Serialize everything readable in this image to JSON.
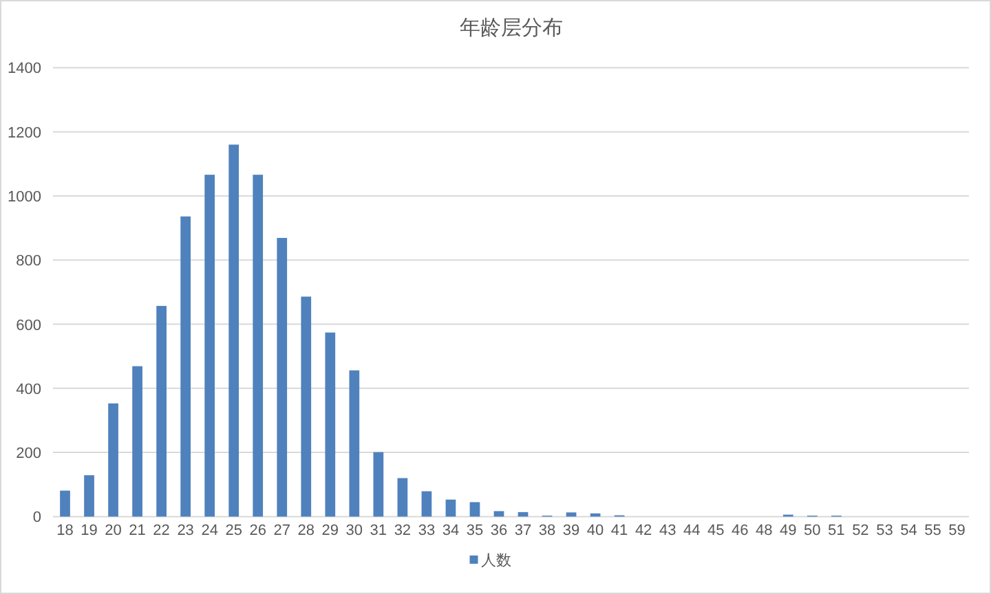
{
  "chart_data": {
    "type": "bar",
    "title": "年龄层分布",
    "categories": [
      "18",
      "19",
      "20",
      "21",
      "22",
      "23",
      "24",
      "25",
      "26",
      "27",
      "28",
      "29",
      "30",
      "31",
      "32",
      "33",
      "34",
      "35",
      "36",
      "37",
      "38",
      "39",
      "40",
      "41",
      "42",
      "43",
      "44",
      "45",
      "46",
      "48",
      "49",
      "50",
      "51",
      "52",
      "53",
      "54",
      "55",
      "59"
    ],
    "series": [
      {
        "name": "人数",
        "color": "#4f81bd",
        "values": [
          81,
          129,
          353,
          469,
          657,
          936,
          1066,
          1160,
          1066,
          869,
          686,
          574,
          456,
          201,
          120,
          79,
          53,
          45,
          17,
          14,
          3,
          13,
          10,
          4,
          0,
          0,
          0,
          0,
          0,
          0,
          6,
          3,
          3,
          0,
          0,
          0,
          0,
          0
        ]
      }
    ],
    "ylim": [
      0,
      1400
    ],
    "yticks": [
      0,
      200,
      400,
      600,
      800,
      1000,
      1200,
      1400
    ],
    "grid": "y",
    "legend": "bottom"
  }
}
